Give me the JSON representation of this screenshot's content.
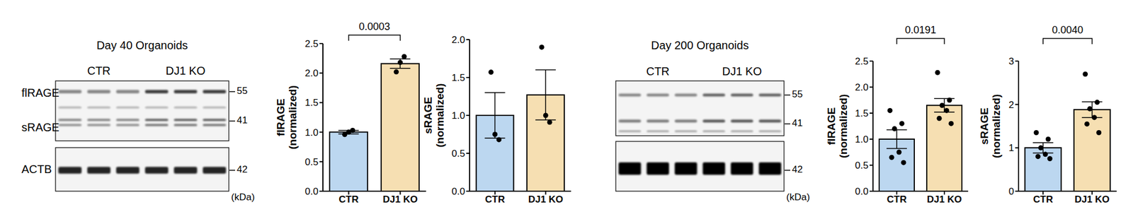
{
  "chart_data": [
    {
      "type": "bar",
      "categories": [
        "CTR",
        "DJ1 KO"
      ],
      "values": [
        1.0,
        2.16
      ],
      "errors": [
        0.03,
        0.08
      ],
      "points": [
        [
          0.96,
          1.0,
          1.03
        ],
        [
          2.02,
          2.18,
          2.28
        ]
      ],
      "colors": [
        "#bcd7f0",
        "#f6dfb2"
      ],
      "ylim": [
        0,
        2.5
      ],
      "yticks": [
        {
          "value": 0,
          "label": "0.0"
        },
        0.5,
        {
          "value": 1,
          "label": "1.0"
        },
        1.5,
        {
          "value": 2,
          "label": "2.0"
        },
        2.5
      ],
      "y_label": [
        "flRAGE",
        "(normalized)"
      ],
      "annotation": "0.0003"
    },
    {
      "type": "bar",
      "categories": [
        "CTR",
        "DJ1 KO"
      ],
      "values": [
        1.0,
        1.27
      ],
      "errors": [
        0.3,
        0.33
      ],
      "points": [
        [
          1.57,
          0.75,
          0.68
        ],
        [
          1.9,
          1.0,
          0.91
        ]
      ],
      "colors": [
        "#bcd7f0",
        "#f6dfb2"
      ],
      "ylim": [
        0,
        2
      ],
      "yticks": [
        {
          "value": 0,
          "label": "0.0"
        },
        0.5,
        {
          "value": 1,
          "label": "1.0"
        },
        1.5,
        {
          "value": 2,
          "label": "2.0"
        }
      ],
      "y_label": [
        "sRAGE",
        "(normalized)"
      ]
    },
    {
      "type": "bar",
      "categories": [
        "CTR",
        "DJ1 KO"
      ],
      "values": [
        1.0,
        1.65
      ],
      "errors": [
        0.18,
        0.13
      ],
      "points": [
        [
          1.55,
          1.3,
          1.2,
          0.75,
          0.65,
          0.55
        ],
        [
          2.28,
          1.75,
          1.65,
          1.55,
          1.4,
          1.3
        ]
      ],
      "colors": [
        "#bcd7f0",
        "#f6dfb2"
      ],
      "ylim": [
        0,
        2.5
      ],
      "yticks": [
        {
          "value": 0,
          "label": "0.0"
        },
        0.5,
        {
          "value": 1,
          "label": "1.0"
        },
        1.5,
        {
          "value": 2,
          "label": "2.0"
        },
        2.5
      ],
      "y_label": [
        "flRAGE",
        "(normalized)"
      ],
      "annotation": "0.0191"
    },
    {
      "type": "bar",
      "categories": [
        "CTR",
        "DJ1 KO"
      ],
      "values": [
        1.0,
        1.88
      ],
      "errors": [
        0.12,
        0.18
      ],
      "points": [
        [
          1.35,
          1.2,
          1.0,
          0.85,
          0.8,
          0.75
        ],
        [
          2.7,
          2.05,
          1.9,
          1.7,
          1.55,
          1.35
        ]
      ],
      "colors": [
        "#bcd7f0",
        "#f6dfb2"
      ],
      "ylim": [
        0,
        3
      ],
      "yticks": [
        0,
        1,
        2,
        3
      ],
      "y_label": [
        "sRAGE",
        "(normalized)"
      ],
      "annotation": "0.0040"
    }
  ],
  "blots": [
    {
      "title": "Day 40 Organoids",
      "groups": [
        "CTR",
        "DJ1 KO"
      ],
      "band_labels": [
        "flRAGE",
        "sRAGE"
      ],
      "loading_label": "ACTB",
      "markers": [
        55,
        41
      ],
      "loading_marker": 42,
      "unit": "(kDa)"
    },
    {
      "title": "Day 200 Organoids",
      "groups": [
        "CTR",
        "DJ1 KO"
      ],
      "markers": [
        55,
        41
      ],
      "loading_marker": 42,
      "unit": "(kDa)"
    }
  ]
}
